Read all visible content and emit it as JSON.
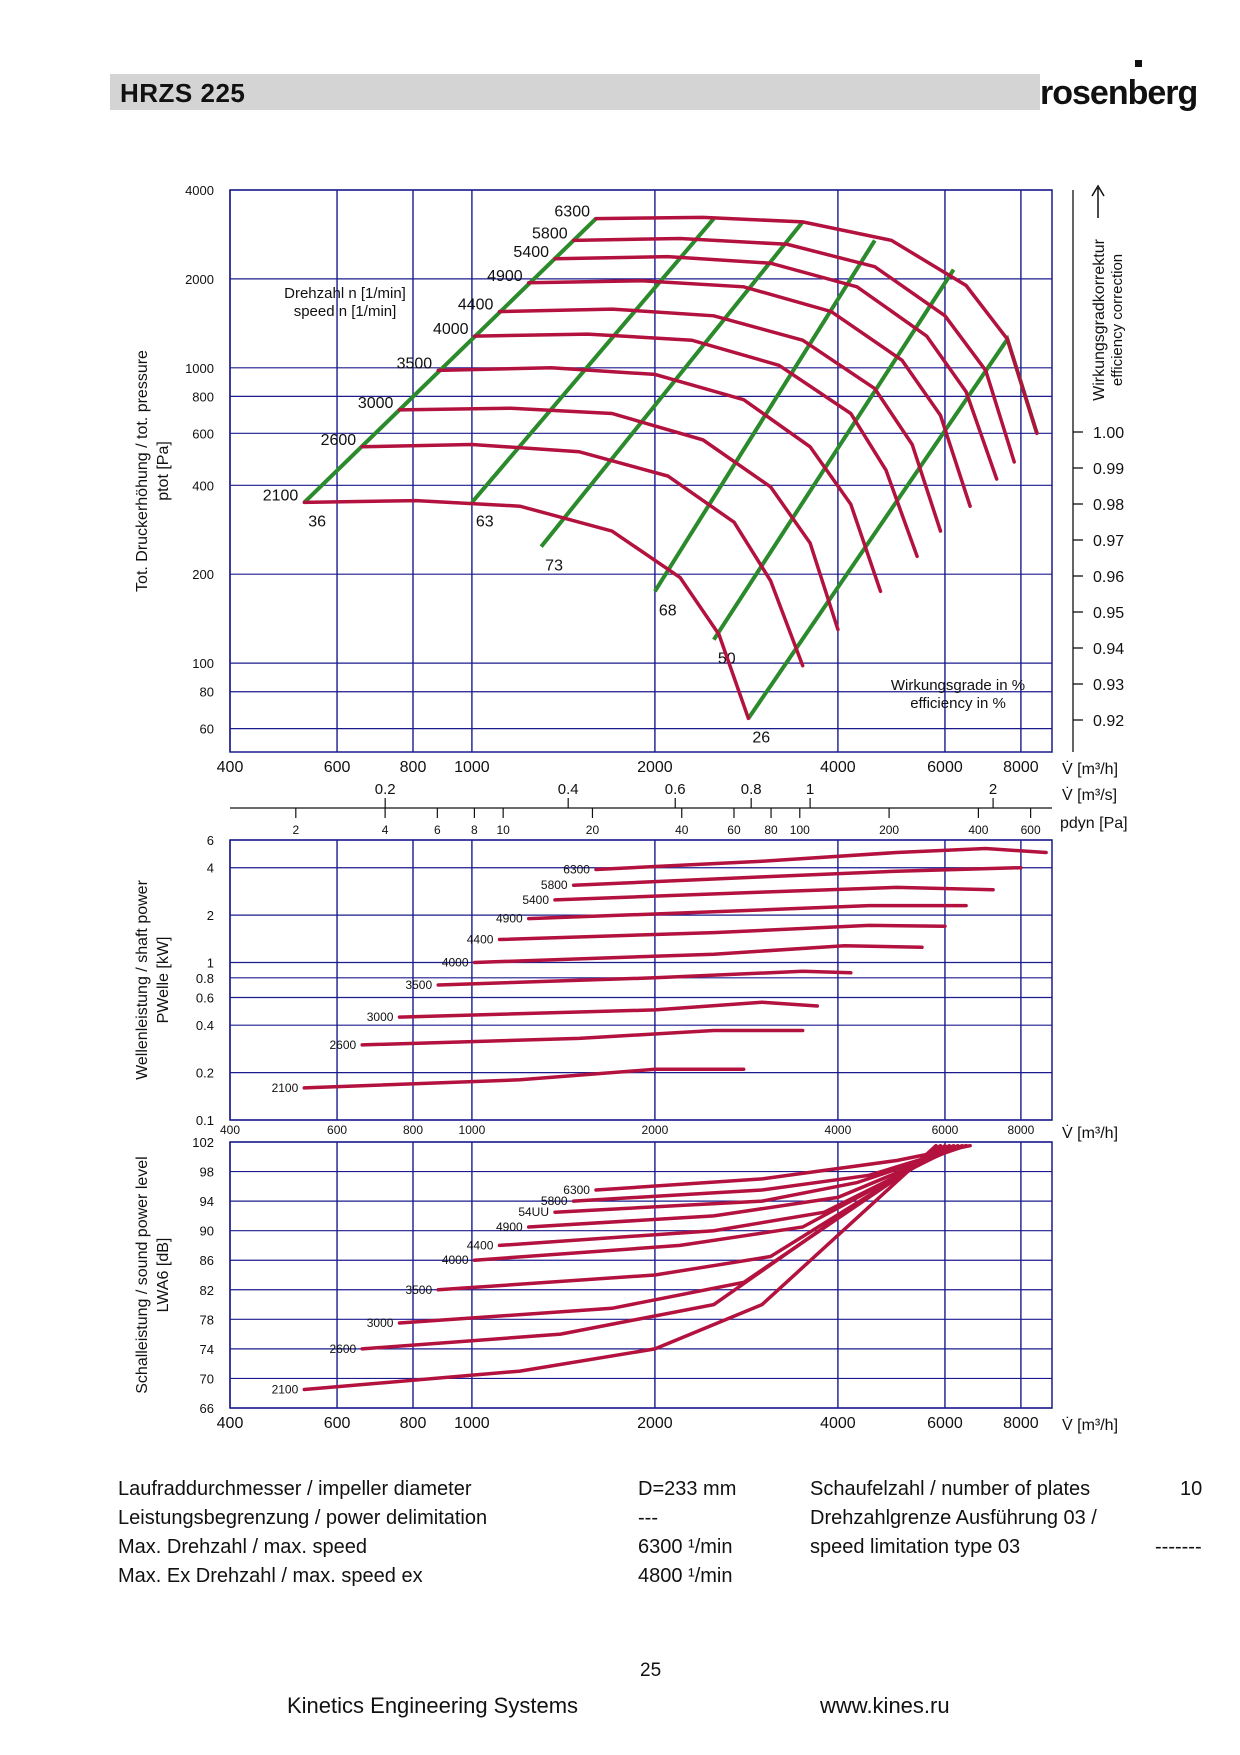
{
  "header": {
    "title": "HRZS 225",
    "brand": "rosenberg"
  },
  "colors": {
    "grid": "#1b1b8e",
    "curve": "#b3123f",
    "efficiency": "#2b8a2b",
    "text": "#111111",
    "header_bar": "#d4d4d4"
  },
  "chart_data": [
    {
      "id": "pressure",
      "type": "line",
      "xscale": "log",
      "yscale": "log",
      "xlim": [
        400,
        9000
      ],
      "ylim": [
        50,
        4000
      ],
      "xlabel": "V̇ [m³/h]",
      "ylabel": "Tot. Druckerhöhung / tot. pressure",
      "ylabel_sub": "ptot [Pa]",
      "xticks": [
        400,
        600,
        800,
        1000,
        2000,
        4000,
        6000,
        8000
      ],
      "yticks": [
        60,
        80,
        100,
        200,
        400,
        600,
        800,
        1000,
        2000,
        4000
      ],
      "legend_label": "Drehzahl n [1/min] speed n [1/min]",
      "series": [
        {
          "name": "6300",
          "points": [
            [
              1600,
              3200
            ],
            [
              2400,
              3230
            ],
            [
              3500,
              3120
            ],
            [
              4900,
              2700
            ],
            [
              6500,
              1900
            ],
            [
              7600,
              1250
            ],
            [
              8500,
              600
            ]
          ]
        },
        {
          "name": "5800",
          "points": [
            [
              1470,
              2700
            ],
            [
              2200,
              2740
            ],
            [
              3300,
              2620
            ],
            [
              4600,
              2200
            ],
            [
              6000,
              1500
            ],
            [
              7000,
              980
            ],
            [
              7800,
              480
            ]
          ]
        },
        {
          "name": "5400",
          "points": [
            [
              1370,
              2340
            ],
            [
              2100,
              2380
            ],
            [
              3100,
              2260
            ],
            [
              4300,
              1880
            ],
            [
              5600,
              1280
            ],
            [
              6500,
              830
            ],
            [
              7300,
              420
            ]
          ]
        },
        {
          "name": "4900",
          "points": [
            [
              1240,
              1940
            ],
            [
              1900,
              1970
            ],
            [
              2800,
              1880
            ],
            [
              3900,
              1550
            ],
            [
              5100,
              1060
            ],
            [
              5900,
              690
            ],
            [
              6600,
              340
            ]
          ]
        },
        {
          "name": "4400",
          "points": [
            [
              1110,
              1550
            ],
            [
              1700,
              1580
            ],
            [
              2500,
              1500
            ],
            [
              3500,
              1240
            ],
            [
              4600,
              850
            ],
            [
              5300,
              550
            ],
            [
              5900,
              280
            ]
          ]
        },
        {
          "name": "4000",
          "points": [
            [
              1010,
              1280
            ],
            [
              1550,
              1300
            ],
            [
              2300,
              1240
            ],
            [
              3200,
              1020
            ],
            [
              4200,
              700
            ],
            [
              4800,
              450
            ],
            [
              5400,
              230
            ]
          ]
        },
        {
          "name": "3500",
          "points": [
            [
              880,
              980
            ],
            [
              1350,
              1000
            ],
            [
              2000,
              950
            ],
            [
              2800,
              780
            ],
            [
              3600,
              540
            ],
            [
              4200,
              345
            ],
            [
              4700,
              175
            ]
          ]
        },
        {
          "name": "3000",
          "points": [
            [
              760,
              720
            ],
            [
              1160,
              730
            ],
            [
              1700,
              700
            ],
            [
              2400,
              570
            ],
            [
              3100,
              395
            ],
            [
              3600,
              255
            ],
            [
              4000,
              130
            ]
          ]
        },
        {
          "name": "2600",
          "points": [
            [
              660,
              540
            ],
            [
              1000,
              550
            ],
            [
              1500,
              520
            ],
            [
              2100,
              430
            ],
            [
              2700,
              300
            ],
            [
              3100,
              190
            ],
            [
              3500,
              98
            ]
          ]
        },
        {
          "name": "2100",
          "points": [
            [
              530,
              350
            ],
            [
              810,
              355
            ],
            [
              1200,
              340
            ],
            [
              1700,
              280
            ],
            [
              2200,
              195
            ],
            [
              2550,
              125
            ],
            [
              2850,
              65
            ]
          ]
        }
      ],
      "efficiency_lines": [
        {
          "label": "36",
          "points": [
            [
              530,
              350
            ],
            [
              1600,
              3200
            ]
          ]
        },
        {
          "label": "63",
          "points": [
            [
              1000,
              350
            ],
            [
              2500,
              3200
            ]
          ]
        },
        {
          "label": "73",
          "points": [
            [
              1300,
              248
            ],
            [
              3500,
              3120
            ]
          ]
        },
        {
          "label": "68",
          "points": [
            [
              2000,
              175
            ],
            [
              4600,
              2700
            ]
          ]
        },
        {
          "label": "50",
          "points": [
            [
              2500,
              120
            ],
            [
              6200,
              2150
            ]
          ]
        },
        {
          "label": "26",
          "points": [
            [
              2850,
              65
            ],
            [
              7600,
              1250
            ],
            [
              8500,
              600
            ]
          ]
        }
      ],
      "efficiency_legend": [
        "Wirkungsgrade in %",
        "efficiency in %"
      ],
      "secondary_axes": {
        "flow_m3s": {
          "label": "V̇ [m³/s]",
          "ticks": [
            "0.2",
            "0.4",
            "0.6",
            "0.8",
            "1",
            "2"
          ]
        },
        "pdyn": {
          "label": "pdyn [Pa]",
          "ticks": [
            "2",
            "4",
            "6",
            "8",
            "10",
            "20",
            "40",
            "60",
            "80",
            "100",
            "200",
            "400",
            "600"
          ]
        },
        "efficiency_correction": {
          "label": "Wirkungsgradkorrektur",
          "label_en": "efficiency correction",
          "ticks": [
            "1.00",
            "0.99",
            "0.98",
            "0.97",
            "0.96",
            "0.95",
            "0.94",
            "0.93",
            "0.92"
          ]
        }
      }
    },
    {
      "id": "power",
      "type": "line",
      "xscale": "log",
      "yscale": "log",
      "xlim": [
        400,
        9000
      ],
      "ylim": [
        0.1,
        6
      ],
      "xlabel": "V̇ [m³/h]",
      "ylabel": "Wellenleistung / shaft power",
      "ylabel_sub": "PWelle [kW]",
      "xticks": [
        400,
        600,
        800,
        1000,
        2000,
        4000,
        6000,
        8000
      ],
      "yticks": [
        0.1,
        0.2,
        0.4,
        0.6,
        0.8,
        1,
        2,
        4,
        6
      ],
      "series": [
        {
          "name": "6300",
          "points": [
            [
              1600,
              3.9
            ],
            [
              3000,
              4.4
            ],
            [
              5000,
              5.0
            ],
            [
              7000,
              5.3
            ],
            [
              8800,
              5.0
            ]
          ]
        },
        {
          "name": "5800",
          "points": [
            [
              1470,
              3.1
            ],
            [
              3000,
              3.5
            ],
            [
              5000,
              3.8
            ],
            [
              8000,
              4.0
            ]
          ]
        },
        {
          "name": "5400",
          "points": [
            [
              1370,
              2.5
            ],
            [
              3000,
              2.8
            ],
            [
              5000,
              3.0
            ],
            [
              7200,
              2.9
            ]
          ]
        },
        {
          "name": "4900",
          "points": [
            [
              1240,
              1.9
            ],
            [
              2500,
              2.1
            ],
            [
              4500,
              2.3
            ],
            [
              6500,
              2.3
            ]
          ]
        },
        {
          "name": "4400",
          "points": [
            [
              1110,
              1.4
            ],
            [
              2500,
              1.55
            ],
            [
              4500,
              1.72
            ],
            [
              6000,
              1.7
            ]
          ]
        },
        {
          "name": "4000",
          "points": [
            [
              1010,
              1.0
            ],
            [
              2500,
              1.13
            ],
            [
              4100,
              1.28
            ],
            [
              5500,
              1.25
            ]
          ]
        },
        {
          "name": "3500",
          "points": [
            [
              880,
              0.72
            ],
            [
              2000,
              0.8
            ],
            [
              3500,
              0.88
            ],
            [
              4200,
              0.86
            ]
          ]
        },
        {
          "name": "3000",
          "points": [
            [
              760,
              0.45
            ],
            [
              2000,
              0.5
            ],
            [
              3000,
              0.56
            ],
            [
              3700,
              0.53
            ]
          ]
        },
        {
          "name": "2600",
          "points": [
            [
              660,
              0.3
            ],
            [
              1500,
              0.33
            ],
            [
              2500,
              0.37
            ],
            [
              3500,
              0.37
            ]
          ]
        },
        {
          "name": "2100",
          "points": [
            [
              530,
              0.16
            ],
            [
              1200,
              0.18
            ],
            [
              2000,
              0.21
            ],
            [
              2800,
              0.21
            ]
          ]
        }
      ]
    },
    {
      "id": "sound",
      "type": "line",
      "xscale": "log",
      "yscale": "linear",
      "xlim": [
        400,
        9000
      ],
      "ylim": [
        66,
        102
      ],
      "xlabel": "V̇ [m³/h]",
      "ylabel": "Schalleistung / sound power level",
      "ylabel_sub": "LWA6 [dB]",
      "xticks": [
        400,
        600,
        800,
        1000,
        2000,
        4000,
        6000,
        8000
      ],
      "yticks": [
        66,
        70,
        74,
        78,
        82,
        86,
        90,
        94,
        98,
        102
      ],
      "series": [
        {
          "name": "6300",
          "points": [
            [
              1600,
              95.5
            ],
            [
              3000,
              97
            ],
            [
              5000,
              99.5
            ],
            [
              6600,
              101.5
            ]
          ]
        },
        {
          "name": "5800",
          "points": [
            [
              1470,
              94
            ],
            [
              3000,
              95.5
            ],
            [
              4500,
              97.5
            ],
            [
              6500,
              101.5
            ]
          ]
        },
        {
          "name": "54UU",
          "points": [
            [
              1370,
              92.5
            ],
            [
              3000,
              94
            ],
            [
              4300,
              96.5
            ],
            [
              6500,
              101.5
            ]
          ]
        },
        {
          "name": "4900",
          "points": [
            [
              1240,
              90.5
            ],
            [
              2500,
              92
            ],
            [
              4000,
              94.5
            ],
            [
              6400,
              101.5
            ]
          ]
        },
        {
          "name": "4400",
          "points": [
            [
              1110,
              88
            ],
            [
              2500,
              90
            ],
            [
              3800,
              92.5
            ],
            [
              6300,
              101.5
            ]
          ]
        },
        {
          "name": "4000",
          "points": [
            [
              1010,
              86
            ],
            [
              2200,
              88
            ],
            [
              3500,
              90.5
            ],
            [
              6200,
              101.5
            ]
          ]
        },
        {
          "name": "3500",
          "points": [
            [
              880,
              82
            ],
            [
              2000,
              84
            ],
            [
              3100,
              86.5
            ],
            [
              6100,
              101.5
            ]
          ]
        },
        {
          "name": "3000",
          "points": [
            [
              760,
              77.5
            ],
            [
              1700,
              79.5
            ],
            [
              2800,
              83
            ],
            [
              6000,
              101.5
            ]
          ]
        },
        {
          "name": "2600",
          "points": [
            [
              660,
              74
            ],
            [
              1400,
              76
            ],
            [
              2500,
              80
            ],
            [
              5900,
              101.5
            ]
          ]
        },
        {
          "name": "2100",
          "points": [
            [
              530,
              68.5
            ],
            [
              1200,
              71
            ],
            [
              2000,
              74
            ],
            [
              3000,
              80
            ],
            [
              5800,
              101.5
            ]
          ]
        }
      ]
    }
  ],
  "specs": {
    "impeller_label": "Laufraddurchmesser / impeller diameter",
    "impeller_value": "D=233 mm",
    "plates_label": "Schaufelzahl / number of plates",
    "plates_value": "10",
    "power_delim_label": "Leistungsbegrenzung / power delimitation",
    "power_delim_value": "---",
    "speed_limit_label_1": "Drehzahlgrenze Ausführung 03 /",
    "speed_limit_label_2": "speed limitation type 03",
    "speed_limit_value": "-------",
    "max_speed_label": "Max. Drehzahl / max. speed",
    "max_speed_value": "6300 ¹/min",
    "max_ex_label": "Max. Ex Drehzahl / max. speed ex",
    "max_ex_value": "4800 ¹/min"
  },
  "footer": {
    "page_number": "25",
    "company": "Kinetics Engineering Systems",
    "website": "www.kines.ru"
  }
}
